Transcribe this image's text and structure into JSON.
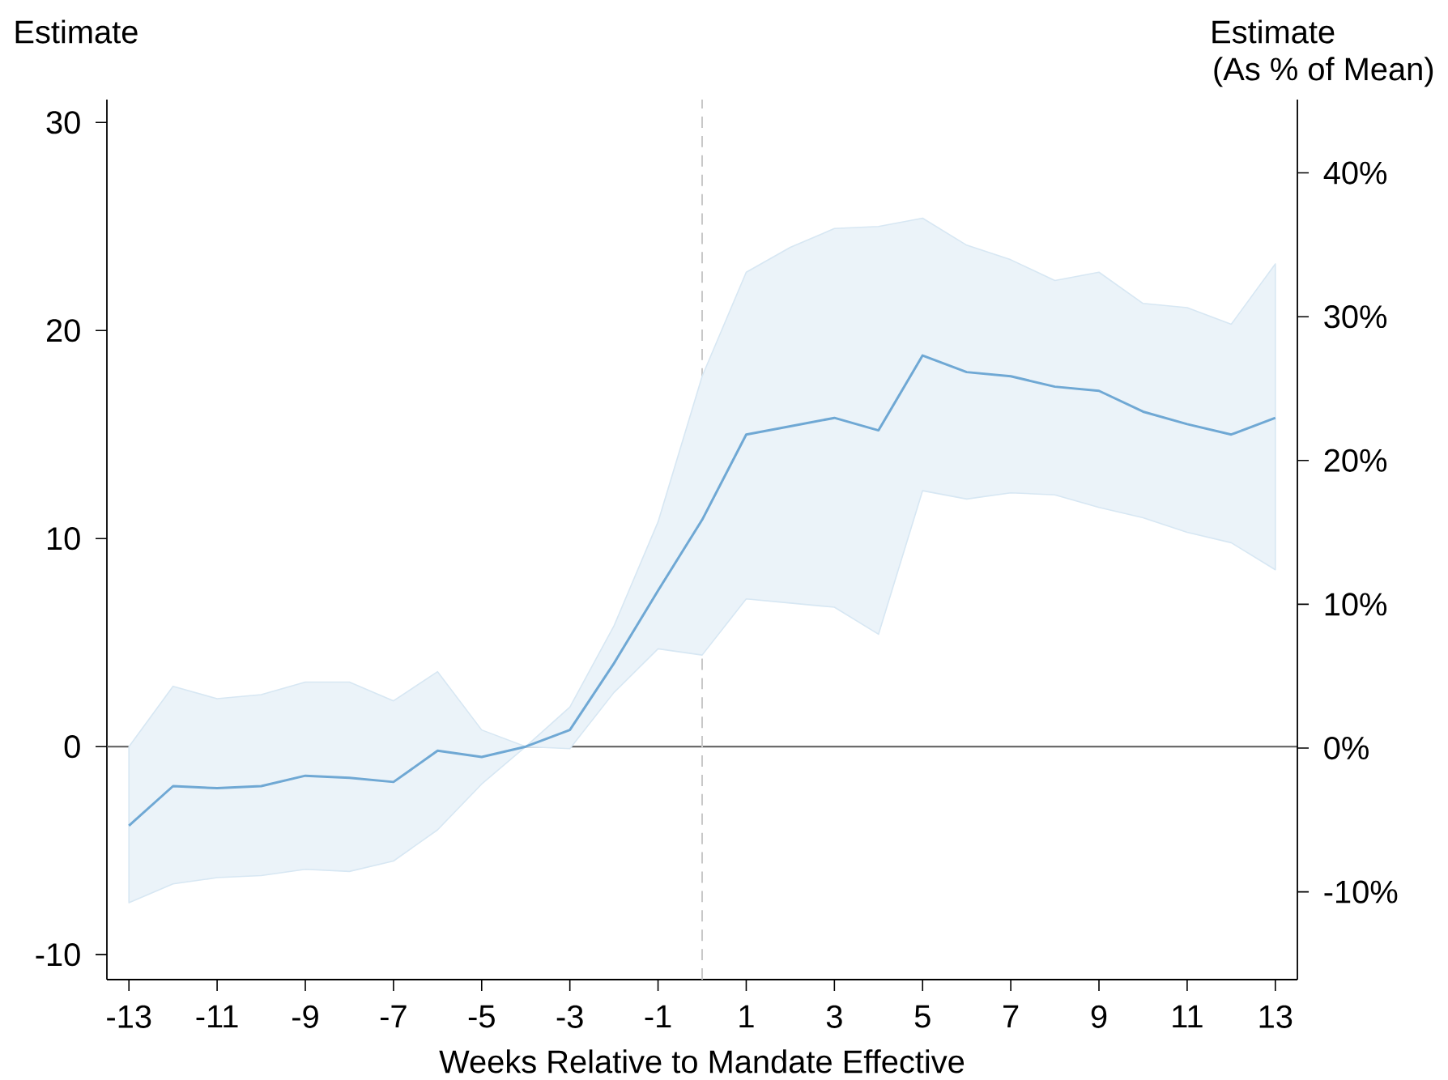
{
  "chart_data": {
    "type": "line",
    "xlabel": "Weeks Relative to Mandate Effective",
    "ylabel": "Estimate",
    "y2label": "Estimate (As % of Mean)",
    "x": [
      -13,
      -12,
      -11,
      -10,
      -9,
      -8,
      -7,
      -6,
      -5,
      -4,
      -3,
      -2,
      -1,
      0,
      1,
      2,
      3,
      4,
      5,
      6,
      7,
      8,
      9,
      10,
      11,
      12,
      13
    ],
    "series": [
      {
        "color": "#6fa8d4",
        "values": [
          -3.8,
          -1.9,
          -2.0,
          -1.9,
          -1.4,
          -1.5,
          -1.7,
          -0.2,
          -0.5,
          0.0,
          0.8,
          4.0,
          7.5,
          10.9,
          15.0,
          15.4,
          15.8,
          15.2,
          18.8,
          18.0,
          17.8,
          17.3,
          17.1,
          16.1,
          15.5,
          15.0,
          15.8
        ],
        "lower": [
          -7.5,
          -6.6,
          -6.3,
          -6.2,
          -5.9,
          -6.0,
          -5.5,
          -4.0,
          -1.8,
          0.0,
          -0.1,
          2.6,
          4.7,
          4.4,
          7.1,
          6.9,
          6.7,
          5.4,
          12.3,
          11.9,
          12.2,
          12.1,
          11.5,
          11.0,
          10.3,
          9.8,
          8.5
        ],
        "upper": [
          0.0,
          2.9,
          2.3,
          2.5,
          3.1,
          3.1,
          2.2,
          3.6,
          0.8,
          0.0,
          1.9,
          5.8,
          10.8,
          17.8,
          22.8,
          24.0,
          24.9,
          25.0,
          25.4,
          24.1,
          23.4,
          22.4,
          22.8,
          21.3,
          21.1,
          20.3,
          23.2
        ]
      }
    ],
    "xlim": [
      -13.5,
      13.5
    ],
    "xticks": [
      -13,
      -11,
      -9,
      -7,
      -5,
      -3,
      -1,
      1,
      3,
      5,
      7,
      9,
      11,
      13
    ],
    "ylim": [
      -11.2,
      31.1
    ],
    "yticks": [
      -10,
      0,
      10,
      20,
      30
    ],
    "y2lim": [
      -16.1,
      45.1
    ],
    "y2ticks": [
      {
        "value": -10,
        "label": "-10%"
      },
      {
        "value": 0,
        "label": "0%"
      },
      {
        "value": 10,
        "label": "10%"
      },
      {
        "value": 20,
        "label": "20%"
      },
      {
        "value": 30,
        "label": "30%"
      },
      {
        "value": 40,
        "label": "40%"
      }
    ],
    "ref_lines": [
      {
        "axis": "y",
        "value": 0,
        "color": "#5a5a5a",
        "line_style": "solid"
      },
      {
        "axis": "x",
        "value": 0,
        "color": "#c8c8c8",
        "line_style": "dashed"
      }
    ],
    "grid": false
  }
}
